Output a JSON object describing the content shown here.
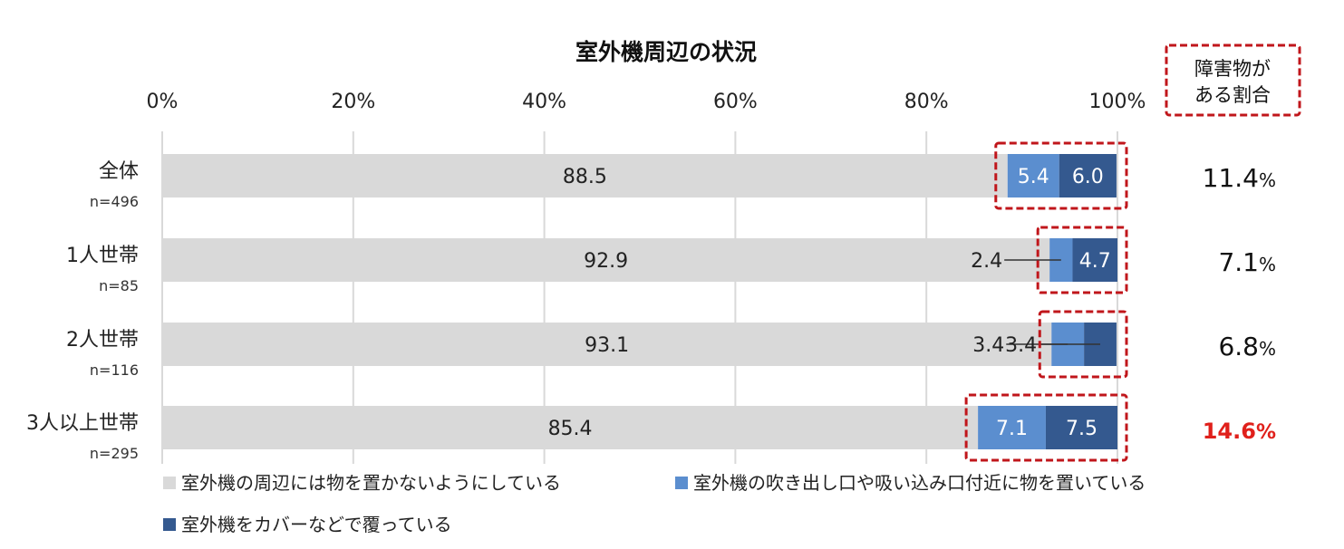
{
  "chart_data": {
    "type": "bar",
    "orientation": "horizontal",
    "stacked": true,
    "title": "室外機周辺の状況",
    "xlim": [
      0,
      100
    ],
    "x_ticks": [
      "0%",
      "20%",
      "40%",
      "60%",
      "80%",
      "100%"
    ],
    "grid": true,
    "legend_position": "bottom",
    "categories": [
      {
        "label": "全体",
        "n": "n=496"
      },
      {
        "label": "1人世帯",
        "n": "n=85"
      },
      {
        "label": "2人世帯",
        "n": "n=116"
      },
      {
        "label": "3人以上世帯",
        "n": "n=295"
      }
    ],
    "series": [
      {
        "name": "室外機の周辺には物を置かないようにしている",
        "color": "#d9d9d9",
        "values": [
          88.5,
          92.9,
          93.1,
          85.4
        ],
        "labels": [
          "88.5",
          "92.9",
          "93.1",
          "85.4"
        ]
      },
      {
        "name": "室外機の吹き出し口や吸い込み口付近に物を置いている",
        "color": "#5b8ecf",
        "values": [
          5.4,
          2.4,
          3.4,
          7.1
        ],
        "labels": [
          "5.4",
          "2.4",
          "3.4",
          "7.1"
        ]
      },
      {
        "name": "室外機をカバーなどで覆っている",
        "color": "#34598f",
        "values": [
          6.0,
          4.7,
          3.4,
          7.5
        ],
        "labels": [
          "6.0",
          "4.7",
          "3.4",
          "7.5"
        ]
      }
    ],
    "side_column": {
      "header": [
        "障害物が",
        "ある割合"
      ],
      "values": [
        "11.4",
        "7.1",
        "6.8",
        "14.6"
      ],
      "unit": "%",
      "highlight_index": 3,
      "highlight_color": "#e0201b"
    },
    "annotation_color": "#c0161b"
  }
}
